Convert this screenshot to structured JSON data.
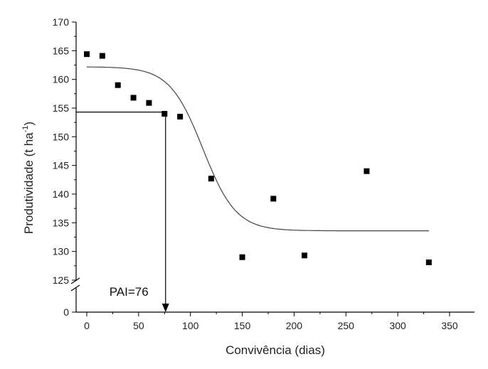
{
  "chart_data": {
    "type": "scatter",
    "title": "",
    "xlabel": "Convivência (dias)",
    "ylabel_main": "Produtividade (t ha",
    "ylabel_sup": "-1",
    "ylabel_close": ")",
    "xlim": [
      -10,
      375
    ],
    "x_ticks": [
      0,
      50,
      100,
      150,
      200,
      250,
      300,
      350
    ],
    "y_ticks": [
      0,
      125,
      130,
      135,
      140,
      145,
      150,
      155,
      160,
      165,
      170
    ],
    "y_axis_break": {
      "between": [
        0,
        125
      ]
    },
    "grid": false,
    "points": [
      {
        "x": 0,
        "y": 164.4
      },
      {
        "x": 15,
        "y": 164.1
      },
      {
        "x": 30,
        "y": 159.0
      },
      {
        "x": 45,
        "y": 156.8
      },
      {
        "x": 60,
        "y": 155.9
      },
      {
        "x": 75,
        "y": 154.0
      },
      {
        "x": 90,
        "y": 153.5
      },
      {
        "x": 120,
        "y": 142.7
      },
      {
        "x": 150,
        "y": 129.0
      },
      {
        "x": 180,
        "y": 139.2
      },
      {
        "x": 210,
        "y": 129.3
      },
      {
        "x": 270,
        "y": 144.0
      },
      {
        "x": 330,
        "y": 128.1
      }
    ],
    "fit_curve": {
      "model": "boltzmann",
      "top": 162.2,
      "bottom": 133.6,
      "x50": 112,
      "slope": 16,
      "x_range": [
        0,
        330
      ]
    },
    "annotation": {
      "text": "PAI=76",
      "x": 76,
      "y": 154.3
    }
  }
}
